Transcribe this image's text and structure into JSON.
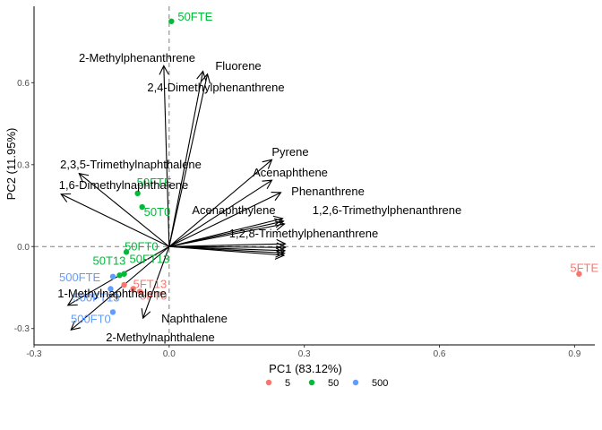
{
  "chart_data": {
    "type": "scatter",
    "subtype": "pca-biplot",
    "title": "",
    "xlabel": "PC1 (83.12%)",
    "ylabel": "PC2 (11.95%)",
    "xlim": [
      -0.3,
      0.945
    ],
    "ylim": [
      -0.36,
      0.88
    ],
    "xticks": [
      -0.3,
      0.0,
      0.3,
      0.6,
      0.9
    ],
    "xtick_labels": [
      "-0.3",
      "0.0",
      "0.3",
      "0.6",
      "0.9"
    ],
    "yticks": [
      -0.3,
      0.0,
      0.3,
      0.6
    ],
    "ytick_labels": [
      "-0.3",
      "0.0",
      "0.3",
      "0.6"
    ],
    "grid": false,
    "reference_lines": {
      "x": 0,
      "y": 0,
      "style": "dashed"
    },
    "legend": {
      "placement": "bottom",
      "entries": [
        {
          "name": "5",
          "color": "#F8766D"
        },
        {
          "name": "50",
          "color": "#00BA38"
        },
        {
          "name": "500",
          "color": "#619CFF"
        }
      ]
    },
    "series": [
      {
        "name": "5",
        "color": "#F8766D",
        "points": [
          {
            "x": 0.91,
            "y": -0.1,
            "label": "5FTE",
            "show_label": true
          },
          {
            "x": -0.08,
            "y": -0.155,
            "label": "5FT13",
            "show_label": true
          },
          {
            "x": -0.065,
            "y": -0.165,
            "label": "5FT0",
            "show_label": true
          },
          {
            "x": -0.1,
            "y": -0.14,
            "label": "",
            "show_label": false
          }
        ]
      },
      {
        "name": "50",
        "color": "#00BA38",
        "points": [
          {
            "x": 0.005,
            "y": 0.825,
            "label": "50FTE",
            "show_label": true
          },
          {
            "x": -0.07,
            "y": 0.195,
            "label": "50FTE",
            "show_label": true
          },
          {
            "x": -0.06,
            "y": 0.145,
            "label": "50T0",
            "show_label": true
          },
          {
            "x": -0.095,
            "y": -0.02,
            "label": "50FT0",
            "show_label": true
          },
          {
            "x": -0.11,
            "y": -0.105,
            "label": "50T13",
            "show_label": true
          },
          {
            "x": -0.1,
            "y": -0.1,
            "label": "50FT13",
            "show_label": true
          }
        ]
      },
      {
        "name": "500",
        "color": "#619CFF",
        "points": [
          {
            "x": -0.125,
            "y": -0.11,
            "label": "500FTE",
            "show_label": true
          },
          {
            "x": -0.13,
            "y": -0.155,
            "label": "500FT13",
            "show_label": true
          },
          {
            "x": -0.125,
            "y": -0.24,
            "label": "500FT0",
            "show_label": true
          }
        ]
      }
    ],
    "loadings": [
      {
        "name": "2-Methylphenanthrene",
        "x": -0.012,
        "y": 0.662
      },
      {
        "name": "Fluorene",
        "x": 0.075,
        "y": 0.642
      },
      {
        "name": "2,4-Dimethylphenanthrene",
        "x": 0.085,
        "y": 0.632
      },
      {
        "name": "Pyrene",
        "x": 0.228,
        "y": 0.318
      },
      {
        "name": "Acenaphthene",
        "x": 0.228,
        "y": 0.243
      },
      {
        "name": "Phenanthrene",
        "x": 0.248,
        "y": 0.198
      },
      {
        "name": "Acenaphthylene",
        "x": 0.252,
        "y": 0.103
      },
      {
        "name": "1,2,6-Trimethylphenanthrene",
        "x": 0.254,
        "y": 0.093
      },
      {
        "name": "1,2,8-Trimethylphenanthrene",
        "x": 0.256,
        "y": 0.083
      },
      {
        "name": "",
        "x": 0.258,
        "y": 0.01
      },
      {
        "name": "",
        "x": 0.258,
        "y": -0.003
      },
      {
        "name": "",
        "x": 0.257,
        "y": -0.015
      },
      {
        "name": "",
        "x": 0.256,
        "y": -0.024
      },
      {
        "name": "",
        "x": 0.255,
        "y": -0.032
      },
      {
        "name": "2,3,5-Trimethylnaphthalene",
        "x": -0.2,
        "y": 0.268
      },
      {
        "name": "1,6-Dimethylnaphthalene",
        "x": -0.24,
        "y": 0.192
      },
      {
        "name": "1-Methylnaphthalene",
        "x": -0.225,
        "y": -0.215
      },
      {
        "name": "2-Methylnaphthalene",
        "x": -0.218,
        "y": -0.305
      },
      {
        "name": "Naphthalene",
        "x": -0.058,
        "y": -0.262
      }
    ]
  }
}
